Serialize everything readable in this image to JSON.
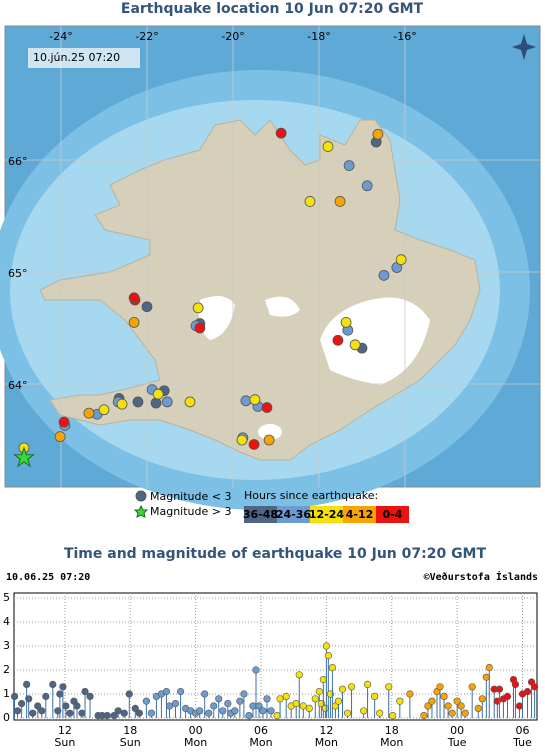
{
  "map": {
    "title": "Earthquake location   10 Jun 07:20 GMT",
    "timestamp": "10.jún.25 07:20",
    "lon_ticks": [
      {
        "value": -24,
        "label": "-24°"
      },
      {
        "value": -22,
        "label": "-22°"
      },
      {
        "value": -20,
        "label": "-20°"
      },
      {
        "value": -18,
        "label": "-18°"
      },
      {
        "value": -16,
        "label": "-16°"
      }
    ],
    "lat_ticks": [
      {
        "value": 66,
        "label": "66°"
      },
      {
        "value": 65,
        "label": "65°"
      },
      {
        "value": 64,
        "label": "64°"
      }
    ],
    "quakes": [
      {
        "lon": [
          -18.88,
          -22.28,
          -20.77,
          -17.56,
          -19.21,
          -19.51,
          -23.93,
          -22.3
        ],
        "lat": [
          66.24,
          64.75,
          64.5,
          64.39,
          63.79,
          63.46,
          63.66,
          64.77
        ]
      },
      {
        "lon": [
          -16.63,
          -17.51,
          -22.3,
          -23.35,
          -24.02,
          -19.16
        ],
        "lat": [
          66.23,
          65.63,
          64.55,
          63.74,
          63.53,
          63.5
        ]
      },
      {
        "lon": [
          -17.79,
          -18.21,
          -20.81,
          -17.37,
          -17.16,
          -16.09,
          -21.74,
          -21.0,
          -19.49,
          -19.79,
          -23.0,
          -22.58,
          -24.86
        ],
        "lat": [
          66.12,
          65.63,
          64.68,
          64.55,
          64.35,
          65.11,
          63.91,
          63.84,
          63.86,
          63.5,
          63.77,
          63.82,
          63.43
        ]
      },
      {
        "lon": [
          -17.3,
          -16.88,
          -16.49,
          -16.19,
          -17.33,
          -19.7,
          -19.42,
          -21.88,
          -21.53,
          -22.67,
          -23.16,
          -23.91,
          -20.86,
          -19.77
        ],
        "lat": [
          65.95,
          65.77,
          64.97,
          65.04,
          64.48,
          63.85,
          63.8,
          63.95,
          63.84,
          63.84,
          63.73,
          63.63,
          64.52,
          63.52
        ]
      },
      {
        "lon": [
          -22.0,
          -22.21,
          -21.79,
          -21.6,
          -16.67,
          -17.0,
          -20.77,
          -22.65
        ],
        "lat": [
          64.69,
          63.84,
          63.83,
          63.94,
          66.16,
          64.32,
          64.54,
          63.87
        ]
      }
    ],
    "large_quakes": {
      "lon": [
        -24.86
      ],
      "lat": [
        63.34
      ]
    },
    "legend": {
      "small": "Magnitude < 3",
      "large": "Magnitude > 3",
      "hours_title": "Hours since earthquake:"
    }
  },
  "chart_data": {
    "type": "stem",
    "title": "Time and magnitude of earthquake   10 Jun 07:20 GMT",
    "timestamp": "10.06.25 07:20",
    "credit": "©Veðurstofa Íslands",
    "xlim": [
      7.33,
      55.33
    ],
    "ylim": [
      0,
      5
    ],
    "yticks": [
      0,
      1,
      2,
      3,
      4,
      5
    ],
    "xticks": [
      12,
      18,
      {
        "value": 24,
        "label": "00"
      },
      {
        "value": 30,
        "label": "06"
      },
      {
        "value": 36,
        "label": "12"
      },
      {
        "value": 42,
        "label": "18"
      },
      {
        "value": 48,
        "label": "00"
      },
      {
        "value": 54,
        "label": "06"
      }
    ],
    "xtick_days": [
      "Sun",
      "Sun",
      "Mon",
      "Mon",
      "Mon",
      "Mon",
      "Tue",
      "Tue"
    ],
    "grid": true,
    "series": [
      {
        "name": "0-4",
        "color": "#ee1111",
        "x": [
          51.4,
          51.69,
          51.88,
          52.25,
          52.62,
          53.17,
          53.35,
          53.72,
          54.0,
          54.46,
          54.83,
          55.11
        ],
        "values": [
          1.2,
          0.7,
          1.2,
          0.8,
          0.9,
          1.6,
          1.4,
          0.5,
          1.0,
          1.1,
          1.5,
          1.3
        ]
      },
      {
        "name": "4-12",
        "color": "#f7a400",
        "x": [
          43.66,
          44.95,
          45.32,
          45.69,
          46.15,
          46.43,
          46.8,
          47.17,
          47.54,
          48.0,
          48.37,
          48.74,
          49.38,
          49.94,
          50.31,
          50.68,
          50.95
        ],
        "values": [
          1.0,
          0.1,
          0.5,
          0.7,
          1.1,
          1.3,
          0.9,
          0.5,
          0.2,
          0.7,
          0.5,
          0.2,
          1.3,
          0.4,
          0.8,
          1.7,
          2.1
        ]
      },
      {
        "name": "12-24",
        "color": "#f5e10a",
        "x": [
          31.48,
          31.75,
          32.31,
          32.77,
          33.23,
          33.51,
          33.88,
          34.43,
          34.98,
          35.35,
          35.54,
          35.72,
          35.91,
          36.0,
          36.18,
          36.37,
          36.55,
          36.83,
          37.11,
          37.48,
          37.94,
          38.31,
          39.42,
          39.78,
          40.43,
          40.89,
          41.72,
          42.09,
          42.74
        ],
        "values": [
          0.1,
          0.8,
          0.9,
          0.5,
          0.6,
          1.8,
          0.5,
          0.4,
          0.8,
          1.1,
          0.6,
          1.6,
          0.4,
          3.0,
          2.6,
          1.0,
          2.1,
          0.5,
          0.7,
          1.2,
          0.2,
          1.3,
          0.3,
          1.4,
          0.9,
          0.2,
          1.3,
          0.1,
          0.7
        ]
      },
      {
        "name": "24-36",
        "color": "#6c9bd2",
        "x": [
          19.48,
          19.94,
          20.4,
          20.86,
          21.32,
          21.6,
          22.15,
          22.62,
          23.08,
          23.54,
          24.0,
          24.37,
          24.83,
          25.2,
          25.66,
          26.12,
          26.49,
          26.95,
          27.23,
          27.6,
          28.06,
          28.43,
          28.89,
          29.26,
          29.54,
          29.82,
          30.18,
          30.55,
          30.92
        ],
        "values": [
          0.7,
          0.2,
          0.9,
          1.0,
          1.1,
          0.5,
          0.6,
          1.1,
          0.4,
          0.3,
          0.2,
          0.3,
          1.0,
          0.2,
          0.5,
          0.8,
          0.3,
          0.6,
          0.2,
          0.3,
          0.7,
          1.0,
          0.1,
          0.5,
          2.0,
          0.5,
          0.3,
          0.8,
          0.3
        ]
      },
      {
        "name": "36-48",
        "color": "#4f6585",
        "x": [
          7.38,
          7.66,
          8.03,
          8.49,
          8.68,
          9.05,
          9.51,
          9.88,
          10.25,
          10.89,
          11.35,
          11.54,
          11.82,
          12.09,
          12.46,
          12.83,
          13.11,
          13.57,
          13.85,
          14.31,
          15.05,
          15.42,
          15.88,
          16.52,
          16.89,
          17.45,
          17.91,
          18.46,
          18.83
        ],
        "values": [
          0.9,
          0.3,
          0.6,
          1.4,
          0.8,
          0.2,
          0.5,
          0.3,
          0.9,
          1.4,
          0.3,
          1.0,
          1.3,
          0.5,
          0.2,
          0.7,
          0.5,
          0.2,
          1.1,
          0.9,
          0.1,
          0.1,
          0.1,
          0.1,
          0.3,
          0.2,
          1.0,
          0.4,
          0.2
        ]
      }
    ]
  }
}
